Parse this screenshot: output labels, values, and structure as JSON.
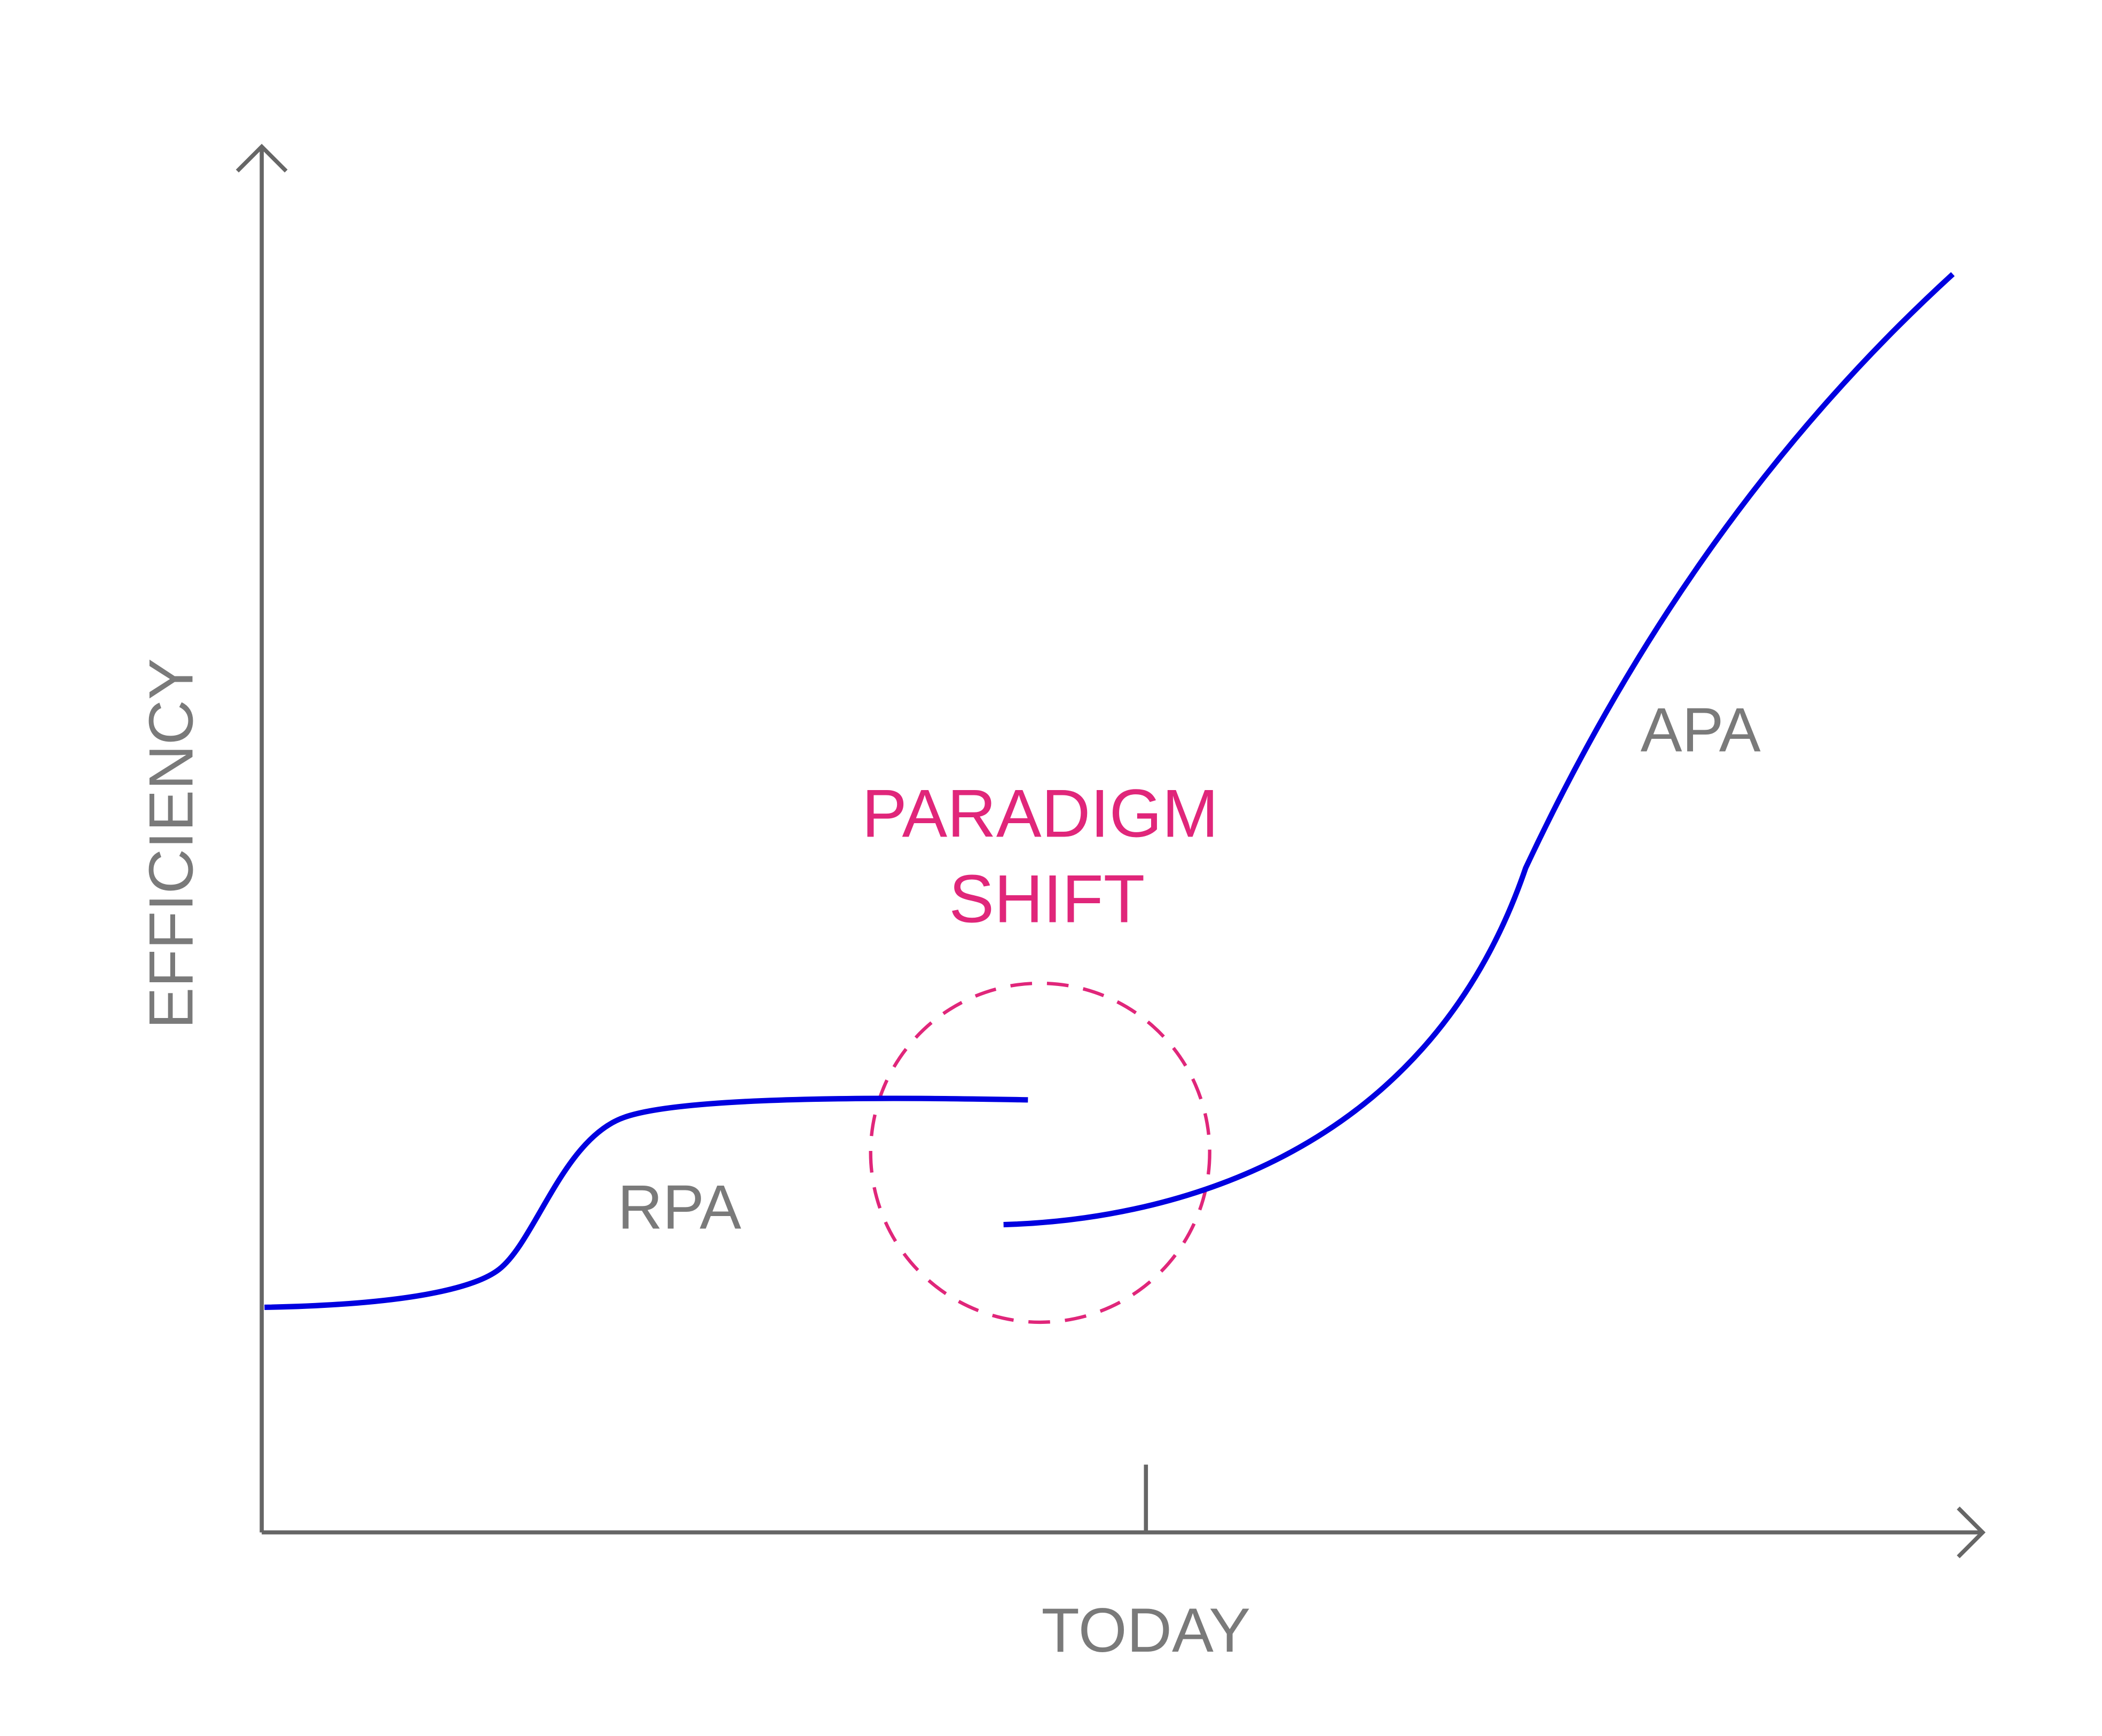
{
  "axes": {
    "y_label": "EFFICIENCY",
    "x_tick_label": "TODAY"
  },
  "annotation": {
    "lines": [
      "PARADIGM",
      "SHIFT"
    ]
  },
  "curves": [
    {
      "label": "RPA"
    },
    {
      "label": "APA"
    }
  ]
}
